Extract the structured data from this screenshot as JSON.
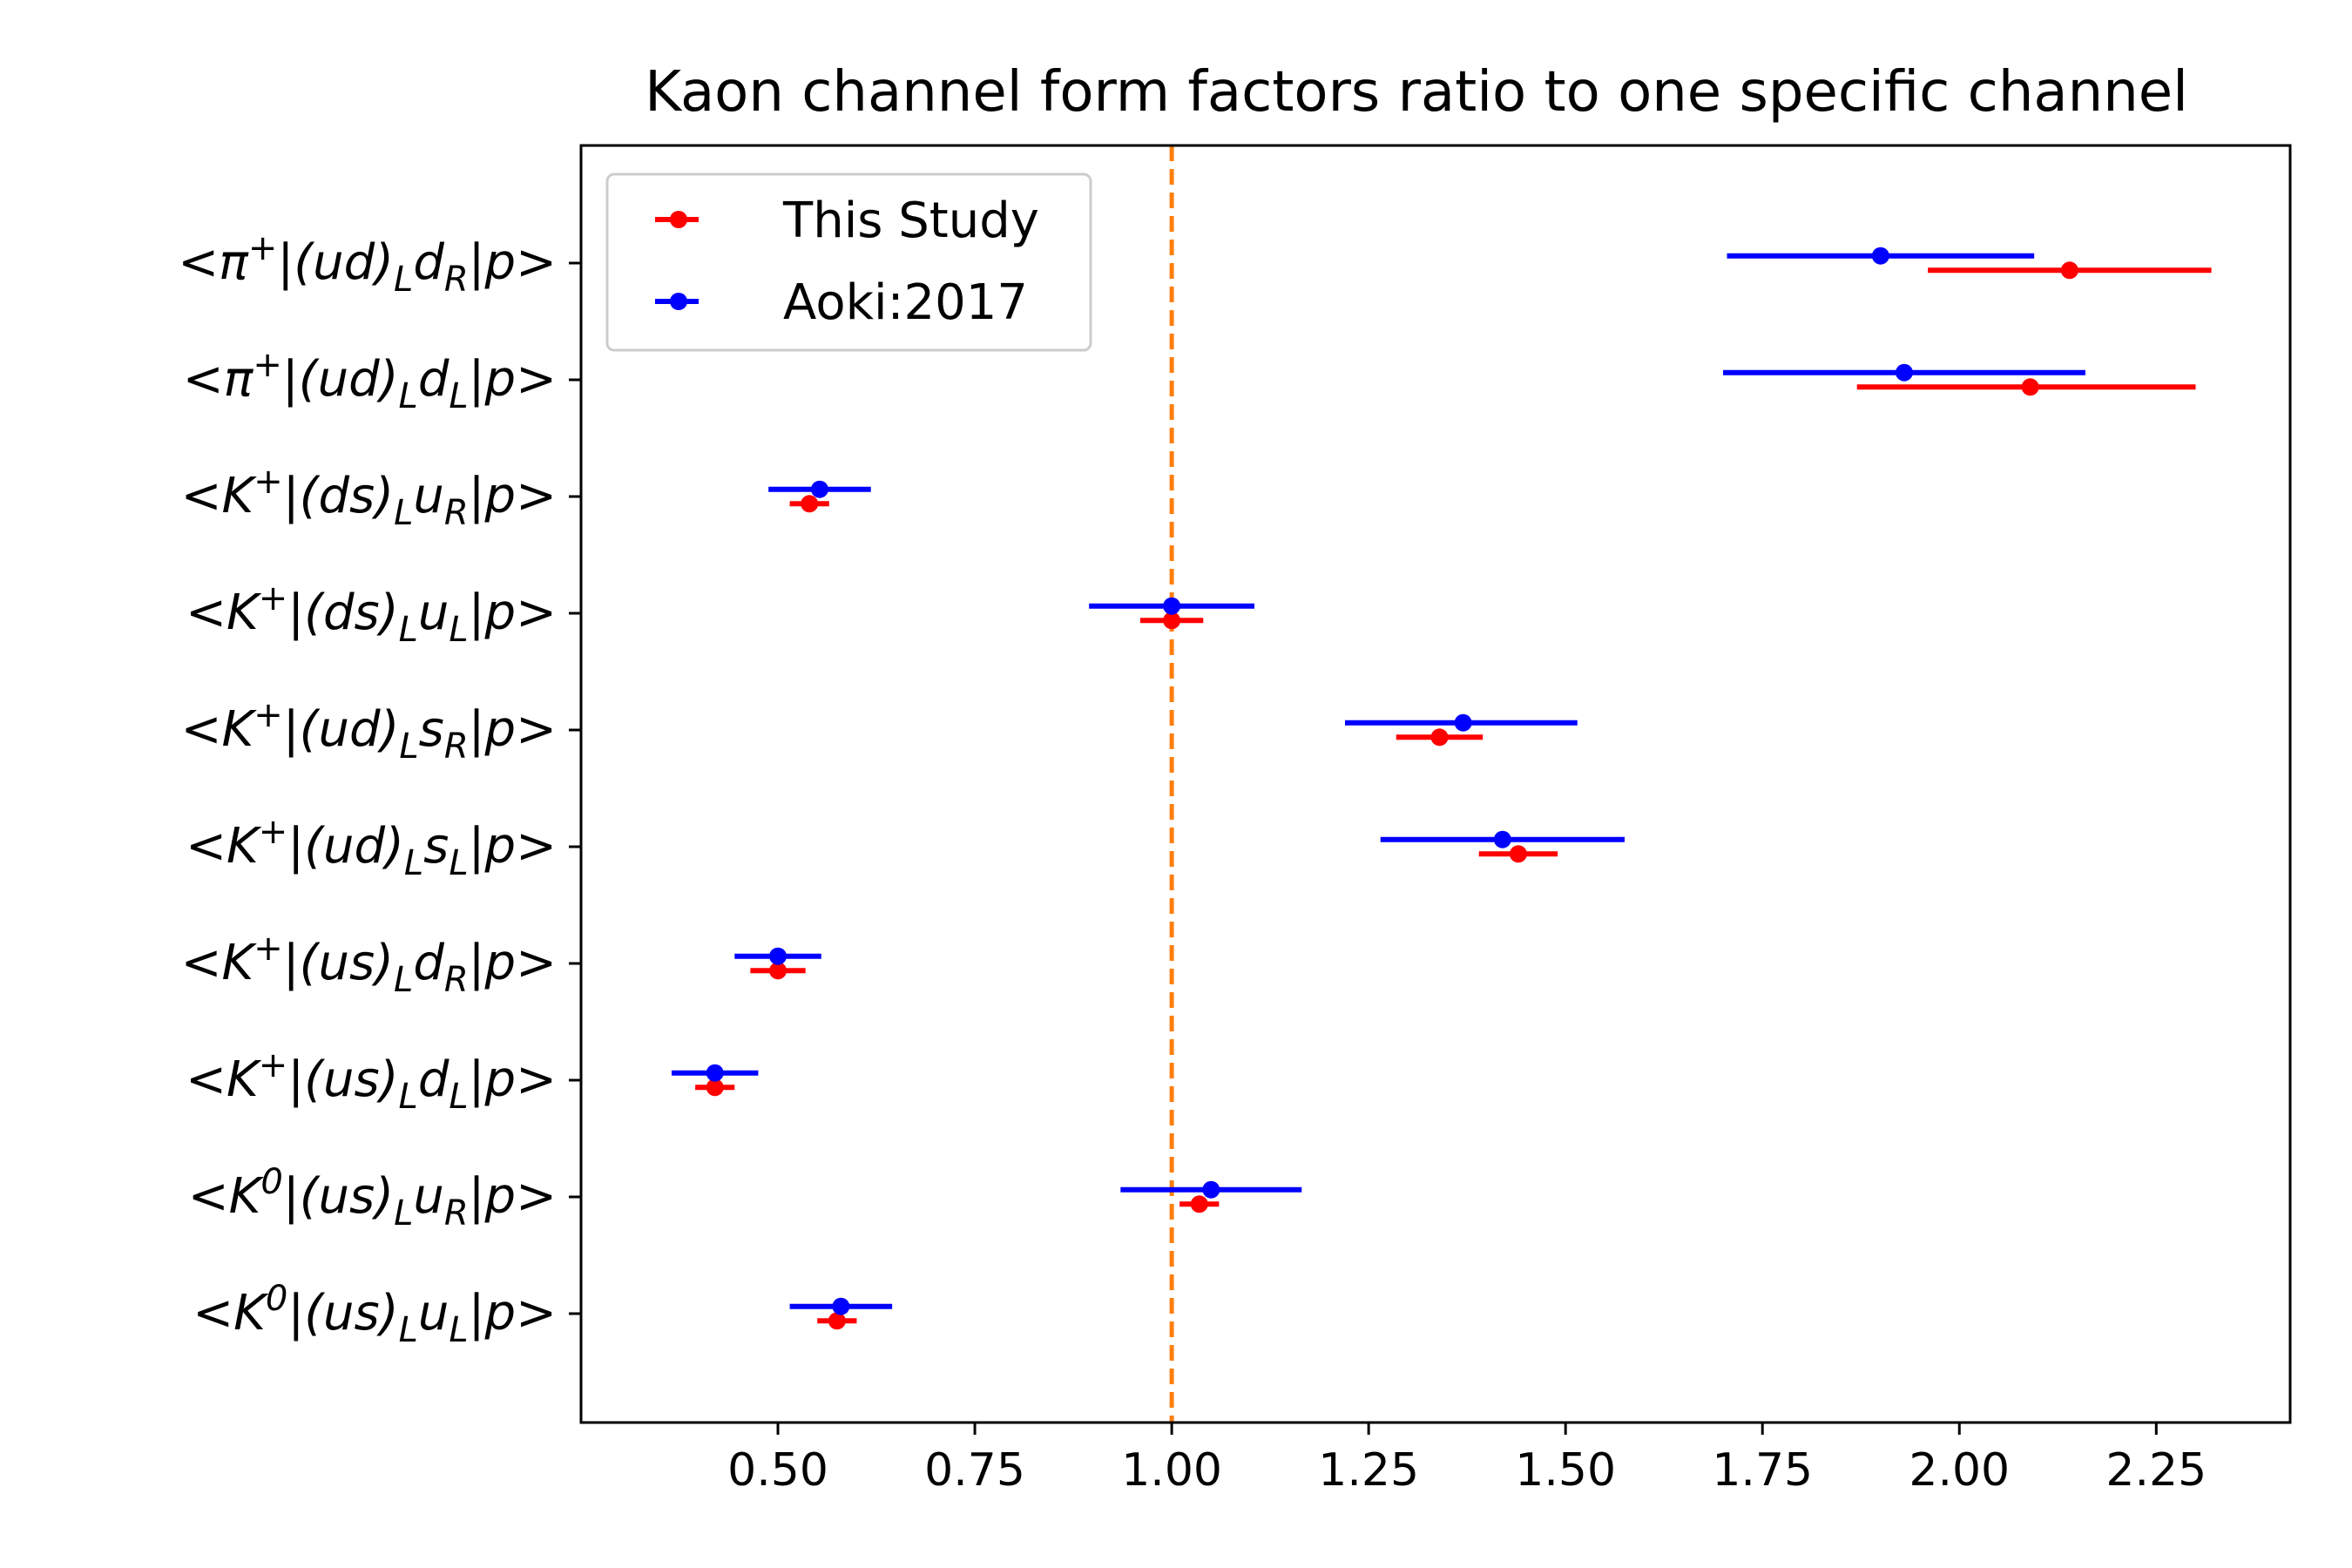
{
  "chart_data": {
    "type": "scatter",
    "title": "Kaon channel form factors ratio to one specific channel",
    "xlabel": "",
    "ylabel": "",
    "xlim": [
      0.25,
      2.42
    ],
    "x_ticks": [
      0.5,
      0.75,
      1.0,
      1.25,
      1.5,
      1.75,
      2.0,
      2.25
    ],
    "x_tick_labels": [
      "0.50",
      "0.75",
      "1.00",
      "1.25",
      "1.50",
      "1.75",
      "2.00",
      "2.25"
    ],
    "grid": false,
    "legend_position": "top-left",
    "reference_line": {
      "x": 1.0,
      "color": "#ff7f0e",
      "style": "dashed"
    },
    "categories": [
      {
        "pre": "<π",
        "sup": "+",
        "mid": "|(ud)",
        "sub1": "L",
        "q": "d",
        "sub2": "R",
        "post": "|p>"
      },
      {
        "pre": "<π",
        "sup": "+",
        "mid": "|(ud)",
        "sub1": "L",
        "q": "d",
        "sub2": "L",
        "post": "|p>"
      },
      {
        "pre": "<K",
        "sup": "+",
        "mid": "|(ds)",
        "sub1": "L",
        "q": "u",
        "sub2": "R",
        "post": "|p>"
      },
      {
        "pre": "<K",
        "sup": "+",
        "mid": "|(ds)",
        "sub1": "L",
        "q": "u",
        "sub2": "L",
        "post": "|p>"
      },
      {
        "pre": "<K",
        "sup": "+",
        "mid": "|(ud)",
        "sub1": "L",
        "q": "s",
        "sub2": "R",
        "post": "|p>"
      },
      {
        "pre": "<K",
        "sup": "+",
        "mid": "|(ud)",
        "sub1": "L",
        "q": "s",
        "sub2": "L",
        "post": "|p>"
      },
      {
        "pre": "<K",
        "sup": "+",
        "mid": "|(us)",
        "sub1": "L",
        "q": "d",
        "sub2": "R",
        "post": "|p>"
      },
      {
        "pre": "<K",
        "sup": "+",
        "mid": "|(us)",
        "sub1": "L",
        "q": "d",
        "sub2": "L",
        "post": "|p>"
      },
      {
        "pre": "<K",
        "sup": "0",
        "mid": "|(us)",
        "sub1": "L",
        "q": "u",
        "sub2": "R",
        "post": "|p>"
      },
      {
        "pre": "<K",
        "sup": "0",
        "mid": "|(us)",
        "sub1": "L",
        "q": "u",
        "sub2": "L",
        "post": "|p>"
      }
    ],
    "series": [
      {
        "name": "This Study",
        "color": "#ff0000",
        "y_offset": -0.1,
        "values": [
          2.14,
          2.09,
          0.54,
          1.0,
          1.34,
          1.44,
          0.5,
          0.42,
          1.035,
          0.575
        ],
        "err_low": [
          0.18,
          0.22,
          0.025,
          0.04,
          0.055,
          0.05,
          0.035,
          0.025,
          0.025,
          0.025
        ],
        "err_high": [
          0.18,
          0.21,
          0.025,
          0.04,
          0.055,
          0.05,
          0.035,
          0.025,
          0.025,
          0.025
        ]
      },
      {
        "name": "Aoki:2017",
        "color": "#0000ff",
        "y_offset": 0.1,
        "values": [
          1.9,
          1.93,
          0.553,
          1.0,
          1.37,
          1.42,
          0.5,
          0.42,
          1.05,
          0.58
        ],
        "err_low": [
          0.195,
          0.23,
          0.065,
          0.105,
          0.15,
          0.155,
          0.055,
          0.055,
          0.115,
          0.065
        ],
        "err_high": [
          0.195,
          0.23,
          0.065,
          0.105,
          0.145,
          0.155,
          0.055,
          0.055,
          0.115,
          0.065
        ]
      }
    ]
  }
}
